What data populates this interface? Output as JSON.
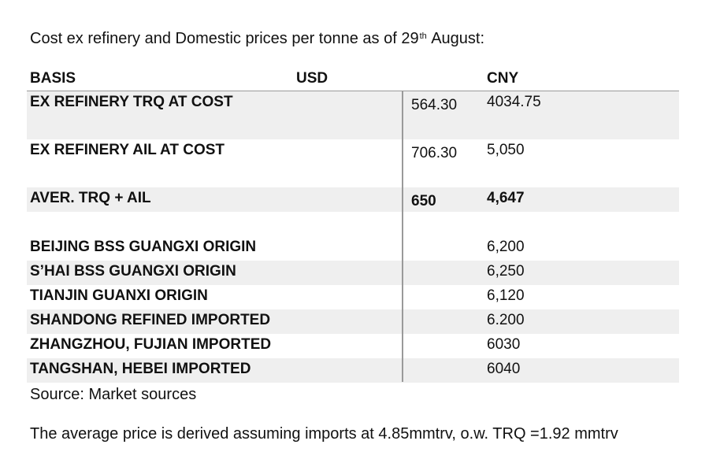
{
  "intro": {
    "before": "Cost ex refinery and Domestic prices per tonne as of 29",
    "sup": "th",
    "after": " August:"
  },
  "table": {
    "headers": {
      "basis": "BASIS",
      "usd": "USD",
      "cny": "CNY"
    },
    "rows": [
      {
        "basis": "EX REFINERY TRQ AT COST",
        "usd": "564.30",
        "cny": "4034.75",
        "shaded": true,
        "bold": false,
        "tall": true
      },
      {
        "basis": "EX REFINERY AIL AT COST",
        "usd": "706.30",
        "cny": "5,050",
        "shaded": false,
        "bold": false,
        "tall": true
      },
      {
        "basis": "AVER. TRQ + AIL",
        "usd": "650",
        "cny": "4,647",
        "shaded": true,
        "bold": true,
        "tall": false
      },
      {
        "basis": "",
        "usd": "",
        "cny": "",
        "shaded": false,
        "bold": false,
        "tall": false
      },
      {
        "basis": "BEIJING BSS GUANGXI ORIGIN",
        "usd": "",
        "cny": "6,200",
        "shaded": false,
        "bold": false,
        "tall": false
      },
      {
        "basis": "S’HAI BSS GUANGXI ORIGIN",
        "usd": "",
        "cny": "6,250",
        "shaded": true,
        "bold": false,
        "tall": false
      },
      {
        "basis": "TIANJIN GUANXI ORIGIN",
        "usd": "",
        "cny": "6,120",
        "shaded": false,
        "bold": false,
        "tall": false
      },
      {
        "basis": "SHANDONG REFINED IMPORTED",
        "usd": "",
        "cny": "6.200",
        "shaded": true,
        "bold": false,
        "tall": false
      },
      {
        "basis": "ZHANGZHOU, FUJIAN IMPORTED",
        "usd": "",
        "cny": "6030",
        "shaded": false,
        "bold": false,
        "tall": false
      },
      {
        "basis": "TANGSHAN, HEBEI IMPORTED",
        "usd": "",
        "cny": "6040",
        "shaded": true,
        "bold": false,
        "tall": false
      }
    ]
  },
  "source": "Source: Market sources",
  "note": "The average price is derived assuming imports at 4.85mmtrv, o.w. TRQ =1.92 mmtrv"
}
